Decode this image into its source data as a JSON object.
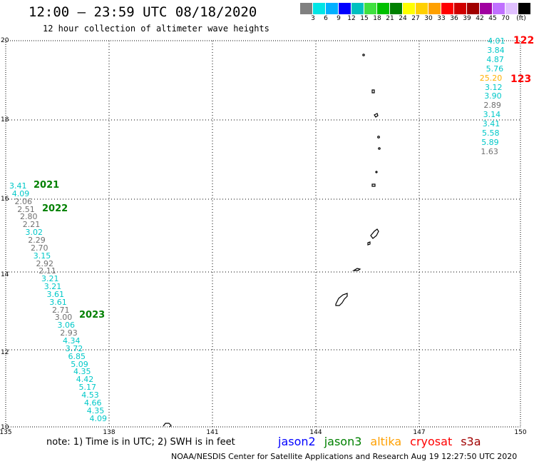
{
  "title": "12:00 – 23:59 UTC 08/18/2020",
  "subtitle": "12 hour collection of altimeter wave heights",
  "colorbar": {
    "colors": [
      "#808080",
      "#00e5e5",
      "#00b0ff",
      "#0000ff",
      "#00c0c0",
      "#40e040",
      "#00c000",
      "#008000",
      "#ffff00",
      "#ffd000",
      "#ffa000",
      "#ff0000",
      "#d00000",
      "#a00000",
      "#a000a0",
      "#c070ff",
      "#e0c0ff",
      "#000000"
    ],
    "labels": [
      "3",
      "6",
      "9",
      "12",
      "15",
      "18",
      "21",
      "24",
      "27",
      "30",
      "33",
      "36",
      "39",
      "42",
      "45",
      "70",
      "(ft)"
    ]
  },
  "axes": {
    "lat_labels": [
      "20",
      "18",
      "16",
      "14",
      "12",
      "10"
    ],
    "lon_labels": [
      "135",
      "138",
      "141",
      "144",
      "147",
      "150"
    ]
  },
  "track_west": [
    {
      "v": "3.41",
      "c": "#00c8c8"
    },
    {
      "v": "4.09",
      "c": "#00c8c8"
    },
    {
      "v": "2.06",
      "c": "#707070"
    },
    {
      "v": "2.51",
      "c": "#707070"
    },
    {
      "v": "2.80",
      "c": "#707070"
    },
    {
      "v": "2.21",
      "c": "#707070"
    },
    {
      "v": "3.02",
      "c": "#00c8c8"
    },
    {
      "v": "2.29",
      "c": "#707070"
    },
    {
      "v": "2.70",
      "c": "#707070"
    },
    {
      "v": "3.15",
      "c": "#00c8c8"
    },
    {
      "v": "2.92",
      "c": "#707070"
    },
    {
      "v": "2.11",
      "c": "#707070"
    },
    {
      "v": "3.21",
      "c": "#00c8c8"
    },
    {
      "v": "3.21",
      "c": "#00c8c8"
    },
    {
      "v": "3.61",
      "c": "#00c8c8"
    },
    {
      "v": "3.61",
      "c": "#00c8c8"
    },
    {
      "v": "2.71",
      "c": "#707070"
    },
    {
      "v": "3.00",
      "c": "#707070"
    },
    {
      "v": "3.06",
      "c": "#00c8c8"
    },
    {
      "v": "2.93",
      "c": "#707070"
    },
    {
      "v": "4.34",
      "c": "#00c8c8"
    },
    {
      "v": "3.72",
      "c": "#00c8c8"
    },
    {
      "v": "6.85",
      "c": "#00c8c8"
    },
    {
      "v": "5.09",
      "c": "#00c8c8"
    },
    {
      "v": "4.35",
      "c": "#00c8c8"
    },
    {
      "v": "4.42",
      "c": "#00c8c8"
    },
    {
      "v": "5.17",
      "c": "#00c8c8"
    },
    {
      "v": "4.53",
      "c": "#00c8c8"
    },
    {
      "v": "4.66",
      "c": "#00c8c8"
    },
    {
      "v": "4.35",
      "c": "#00c8c8"
    },
    {
      "v": "4.09",
      "c": "#00c8c8"
    }
  ],
  "track_east": [
    {
      "v": "4.01",
      "c": "#00c8c8"
    },
    {
      "v": "3.84",
      "c": "#00c8c8"
    },
    {
      "v": "4.87",
      "c": "#00c8c8"
    },
    {
      "v": "5.76",
      "c": "#00c8c8"
    },
    {
      "v": "25.20",
      "c": "#ffb000"
    },
    {
      "v": "3.12",
      "c": "#00c8c8"
    },
    {
      "v": "3.90",
      "c": "#00c8c8"
    },
    {
      "v": "2.89",
      "c": "#707070"
    },
    {
      "v": "3.14",
      "c": "#00c8c8"
    },
    {
      "v": "3.41",
      "c": "#00c8c8"
    },
    {
      "v": "5.58",
      "c": "#00c8c8"
    },
    {
      "v": "5.89",
      "c": "#00c8c8"
    },
    {
      "v": "1.63",
      "c": "#707070"
    }
  ],
  "time_labels": [
    "2021",
    "2022",
    "2023"
  ],
  "pass_ids": [
    "122",
    "123"
  ],
  "note": "note:  1) Time is in UTC;  2) SWH is in feet",
  "satellites": [
    {
      "name": "jason2",
      "color": "#0000ff"
    },
    {
      "name": "jason3",
      "color": "#008000"
    },
    {
      "name": "altika",
      "color": "#ffa000"
    },
    {
      "name": "cryosat",
      "color": "#ff0000"
    },
    {
      "name": "s3a",
      "color": "#a00000"
    }
  ],
  "footer": "NOAA/NESDIS Center for Satellite Applications and Research      Aug 19 12:27:50 UTC 2020"
}
